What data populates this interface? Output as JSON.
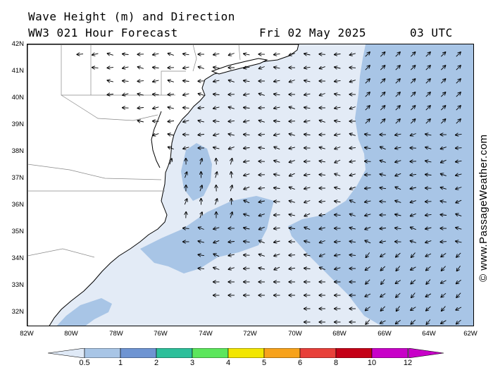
{
  "header": {
    "line1": "Wave Height (m) and Direction",
    "line2_model": "WW3 021 Hour Forecast",
    "line2_date": "Fri 02 May 2025",
    "line2_time": "03 UTC"
  },
  "credit": "© www.PassageWeather.com",
  "y_axis_labels": [
    "42N",
    "41N",
    "40N",
    "39N",
    "38N",
    "37N",
    "36N",
    "35N",
    "34N",
    "33N",
    "32N"
  ],
  "x_axis_labels": [
    "82W",
    "80W",
    "78W",
    "76W",
    "74W",
    "72W",
    "70W",
    "68W",
    "66W",
    "64W",
    "62W"
  ],
  "colorbar": {
    "tick_labels": [
      "0.5",
      "1",
      "2",
      "3",
      "4",
      "5",
      "6",
      "8",
      "10",
      "12"
    ],
    "colors": [
      "#dfe9f6",
      "#a8c5e6",
      "#6e94d2",
      "#2dbf9a",
      "#5ce65c",
      "#f2e600",
      "#f7a21b",
      "#e8403a",
      "#c40017",
      "#c800c8"
    ]
  },
  "map": {
    "extent": {
      "lon": [
        -82,
        -62
      ],
      "lat": [
        31.5,
        42
      ]
    },
    "land_color": "#ffffff",
    "sea_low_color": "#e3ebf6",
    "sea_high_color": "#a8c5e6"
  }
}
